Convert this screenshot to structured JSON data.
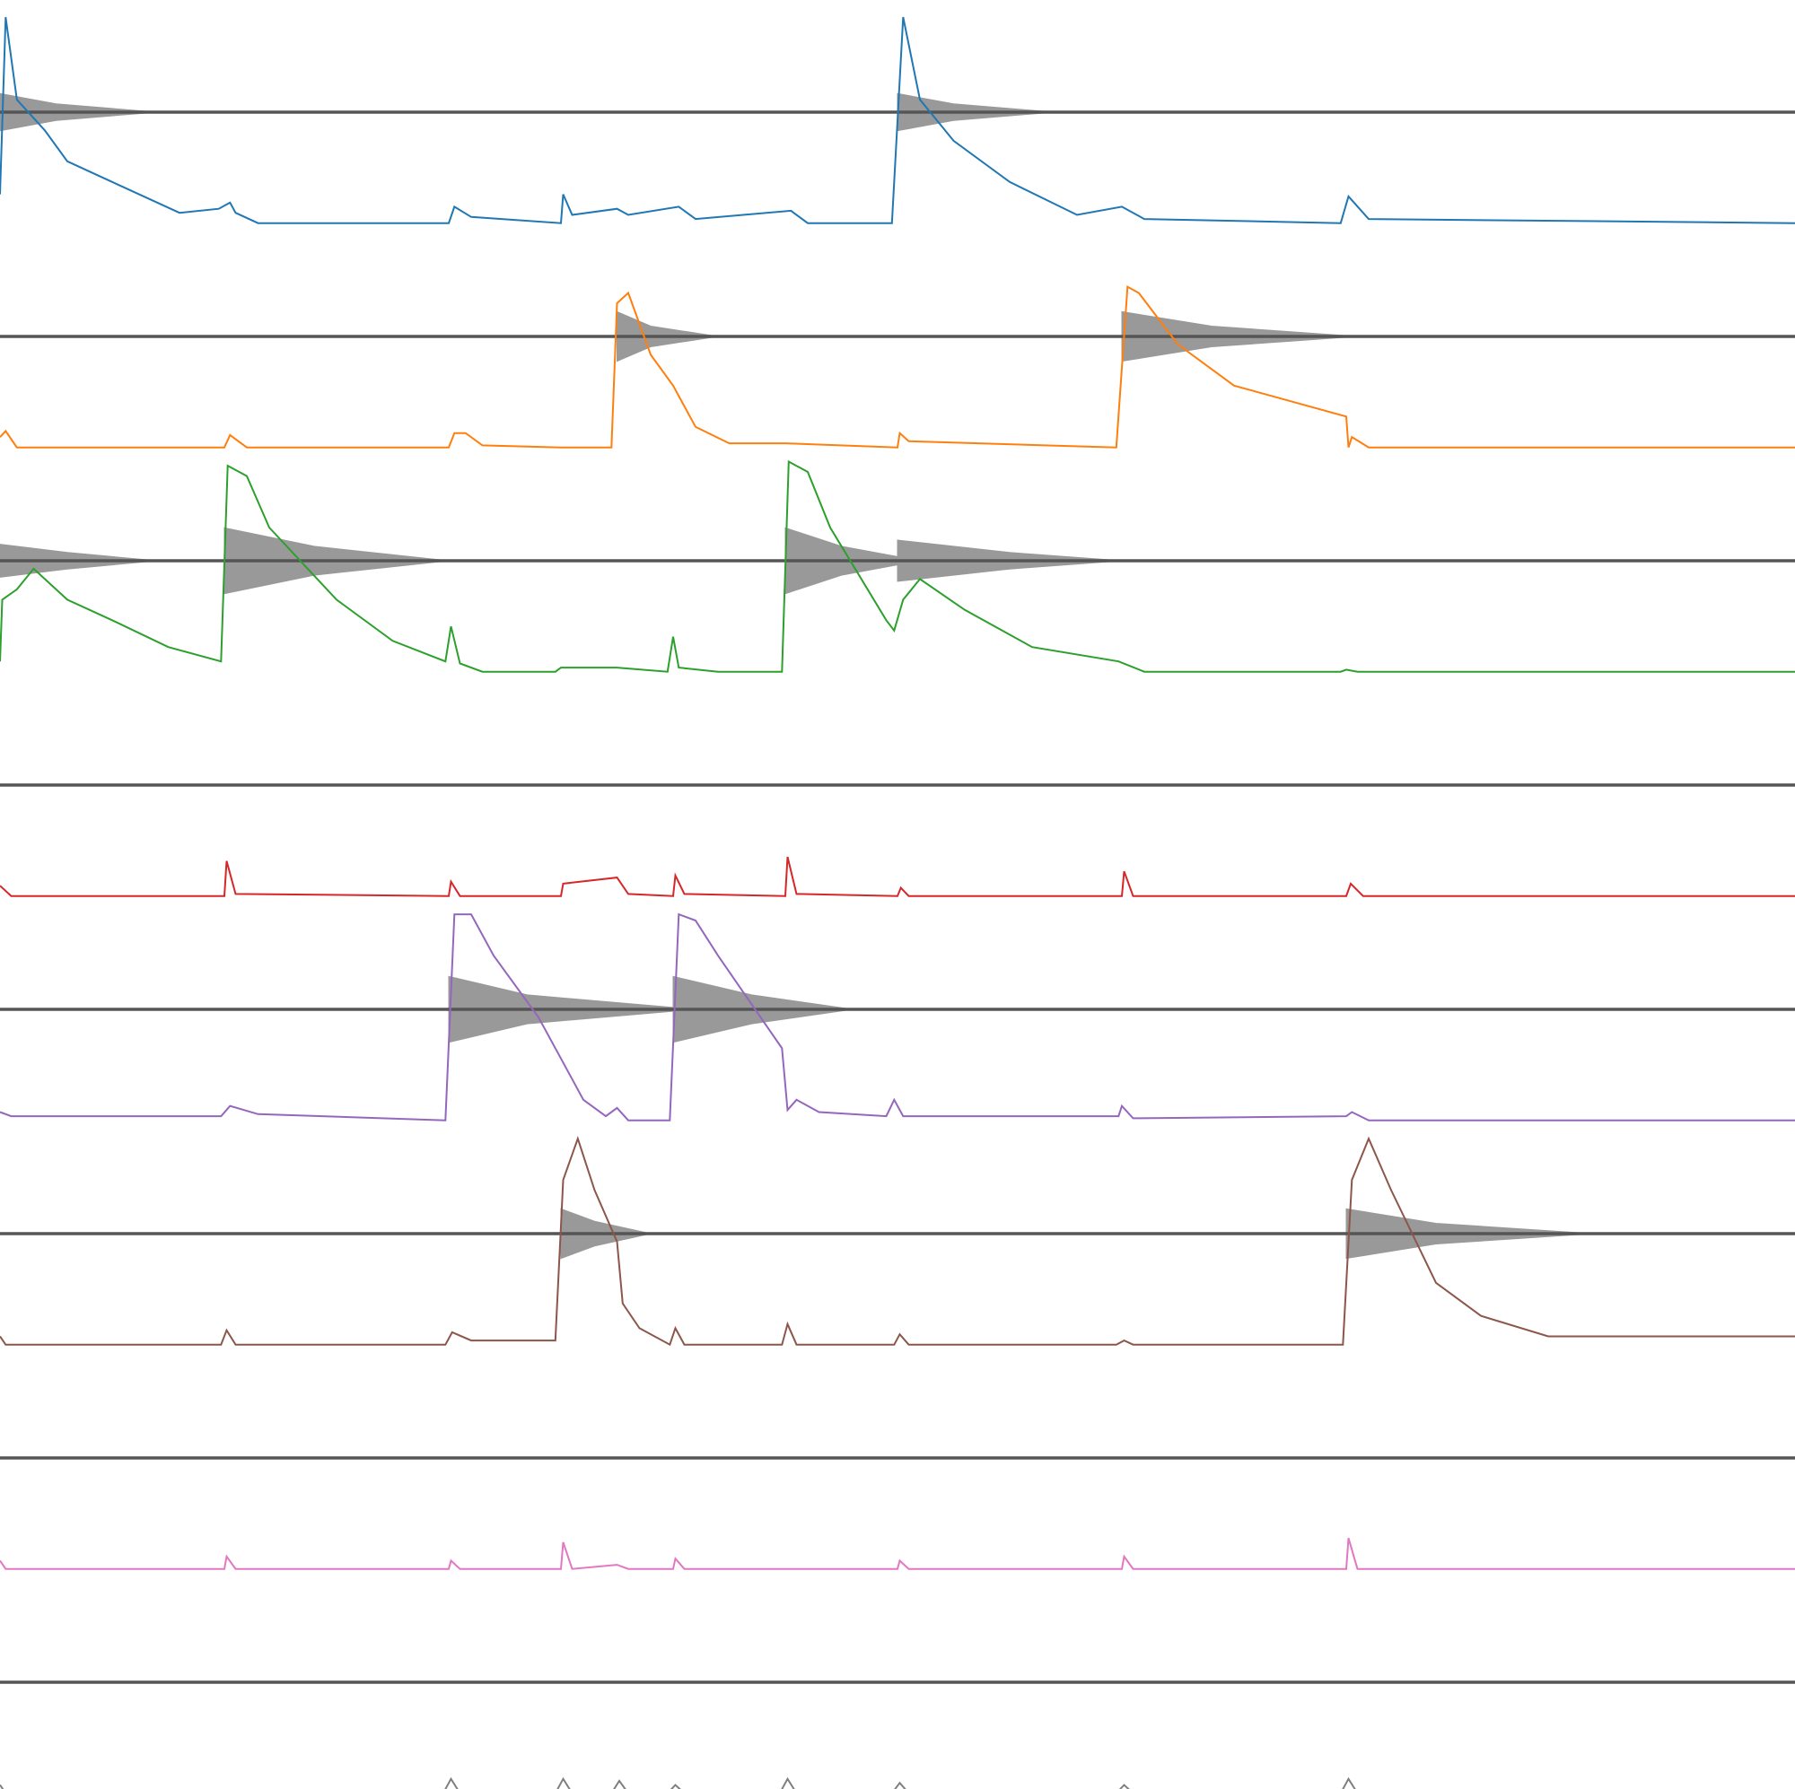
{
  "chart_data": {
    "type": "tracks",
    "xlim": [
      0,
      16
    ],
    "ylim": [
      0,
      1
    ],
    "wave_color": "#999999",
    "baseline_color": "#555555",
    "series": [
      {
        "color": "#1f77b4",
        "x": [
          0,
          0.05,
          0.15,
          0.4,
          0.6,
          1.0,
          1.6,
          1.95,
          2.05,
          2.1,
          2.3,
          4,
          4.05,
          4.2,
          5,
          5.02,
          5.1,
          5.5,
          5.6,
          6.05,
          6.2,
          7.05,
          7.2,
          7.95,
          8.05,
          8.2,
          8.5,
          9.0,
          9.6,
          10.0,
          10.2,
          11.95,
          12.02,
          12.2,
          16
        ],
        "values": [
          0.14,
          1.0,
          0.6,
          0.45,
          0.3,
          0.2,
          0.05,
          0.07,
          0.1,
          0.05,
          0,
          0,
          0.08,
          0.03,
          0,
          0.14,
          0.04,
          0.07,
          0.04,
          0.08,
          0.02,
          0.06,
          0,
          0,
          1.0,
          0.6,
          0.4,
          0.2,
          0.04,
          0.08,
          0.02,
          0,
          0.13,
          0.02,
          0
        ],
        "wave_x": [
          0,
          0.5,
          1.4,
          null,
          8,
          8.5,
          9.4
        ],
        "wave": [
          0.09,
          0.04,
          0,
          null,
          0.09,
          0.04,
          0
        ]
      },
      {
        "color": "#ff7f0e",
        "x": [
          0,
          0.05,
          0.15,
          2,
          2.05,
          2.2,
          4,
          4.05,
          4.15,
          4.3,
          5,
          5.45,
          5.5,
          5.6,
          5.8,
          6.0,
          6.2,
          6.5,
          7,
          8,
          8.02,
          8.1,
          9.95,
          10.05,
          10.15,
          10.5,
          11,
          12,
          12.02,
          12.05,
          12.2,
          16
        ],
        "values": [
          0.05,
          0.08,
          0,
          0,
          0.06,
          0,
          0,
          0.07,
          0.07,
          0.01,
          0,
          0,
          0.7,
          0.75,
          0.45,
          0.3,
          0.1,
          0.02,
          0.02,
          0,
          0.07,
          0.03,
          0,
          0.78,
          0.75,
          0.5,
          0.3,
          0.15,
          0,
          0.05,
          0,
          0
        ],
        "wave_x": [
          5.5,
          5.8,
          6.4,
          null,
          10,
          10.8,
          12.1
        ],
        "wave": [
          0.12,
          0.05,
          0,
          null,
          0.12,
          0.05,
          0
        ]
      },
      {
        "color": "#2ca02c",
        "x": [
          0,
          0.02,
          0.15,
          0.3,
          0.6,
          1.0,
          1.5,
          1.97,
          2.03,
          2.2,
          2.4,
          3.0,
          3.5,
          3.97,
          4.02,
          4.1,
          4.3,
          4.95,
          5,
          5.5,
          5.95,
          6.0,
          6.05,
          6.4,
          6.97,
          7.03,
          7.2,
          7.4,
          7.9,
          7.97,
          8.05,
          8.2,
          8.6,
          9.2,
          9.97,
          10.2,
          11.95,
          12,
          12.1,
          16
        ],
        "values": [
          0.05,
          0.35,
          0.4,
          0.5,
          0.35,
          0.25,
          0.12,
          0.05,
          1.0,
          0.95,
          0.7,
          0.35,
          0.15,
          0.05,
          0.22,
          0.04,
          0,
          0,
          0.02,
          0.02,
          0,
          0.17,
          0.02,
          0,
          0,
          1.02,
          0.97,
          0.7,
          0.25,
          0.2,
          0.35,
          0.45,
          0.3,
          0.12,
          0.05,
          0,
          0,
          0.01,
          0,
          0
        ],
        "wave_x": [
          0,
          0.6,
          1.4,
          null,
          2,
          2.8,
          4,
          null,
          7,
          7.5,
          8,
          null,
          8,
          9,
          10
        ],
        "wave": [
          0.08,
          0.04,
          0,
          null,
          0.16,
          0.07,
          0,
          null,
          0.16,
          0.07,
          0.02,
          null,
          0.1,
          0.04,
          0
        ]
      },
      {
        "color": "#d62728",
        "x": [
          0,
          0.1,
          2,
          2.02,
          2.1,
          4,
          4.02,
          4.1,
          5,
          5.02,
          5.5,
          5.6,
          6,
          6.02,
          6.1,
          7,
          7.02,
          7.1,
          8,
          8.03,
          8.1,
          10,
          10.02,
          10.1,
          12,
          12.04,
          12.15,
          16
        ],
        "values": [
          0.05,
          0,
          0,
          0.17,
          0.01,
          0,
          0.07,
          0,
          0,
          0.06,
          0.09,
          0.01,
          0,
          0.1,
          0.01,
          0,
          0.19,
          0.01,
          0,
          0.04,
          0,
          0,
          0.12,
          0,
          0,
          0.06,
          0,
          0
        ]
      },
      {
        "color": "#9467bd",
        "x": [
          0,
          0.1,
          1.97,
          2.05,
          2.3,
          3.97,
          4.05,
          4.2,
          4.4,
          4.8,
          5.0,
          5.2,
          5.4,
          5.5,
          5.6,
          5.97,
          6.05,
          6.2,
          6.4,
          6.97,
          7.02,
          7.1,
          7.3,
          7.9,
          7.97,
          8.05,
          9.97,
          10,
          10.1,
          12,
          12.05,
          12.2,
          16
        ],
        "values": [
          0.04,
          0.02,
          0.02,
          0.07,
          0.03,
          0,
          1.0,
          1.0,
          0.8,
          0.5,
          0.3,
          0.1,
          0.02,
          0.06,
          0,
          0,
          1.0,
          0.97,
          0.8,
          0.35,
          0.05,
          0.1,
          0.04,
          0.02,
          0.1,
          0.02,
          0.02,
          0.07,
          0.01,
          0.02,
          0.04,
          0,
          0
        ],
        "wave_x": [
          4,
          4.7,
          6.2,
          null,
          6,
          6.7,
          7.6
        ],
        "wave": [
          0.16,
          0.07,
          0,
          null,
          0.16,
          0.07,
          0
        ]
      },
      {
        "color": "#8c564b",
        "x": [
          0,
          0.05,
          1.97,
          2.02,
          2.1,
          3.97,
          4.03,
          4.2,
          4.95,
          5.02,
          5.15,
          5.3,
          5.5,
          5.55,
          5.7,
          5.97,
          6.02,
          6.1,
          6.97,
          7.02,
          7.1,
          7.97,
          8.02,
          8.1,
          9.95,
          10.02,
          10.1,
          11.97,
          12.05,
          12.2,
          12.4,
          12.8,
          13.2,
          13.8,
          14.5,
          16
        ],
        "values": [
          0.04,
          0,
          0,
          0.07,
          0,
          0,
          0.06,
          0.02,
          0.02,
          0.8,
          1.0,
          0.75,
          0.5,
          0.2,
          0.08,
          0,
          0.08,
          0,
          0,
          0.1,
          0,
          0,
          0.05,
          0,
          0,
          0.02,
          0,
          0,
          0.8,
          1.0,
          0.75,
          0.3,
          0.14,
          0.04,
          0.04,
          0.04
        ],
        "wave_x": [
          5,
          5.3,
          5.8,
          null,
          12,
          12.8,
          14.2
        ],
        "wave": [
          0.12,
          0.06,
          0,
          null,
          0.12,
          0.05,
          0
        ]
      },
      {
        "color": "#e377c2",
        "x": [
          0,
          0.05,
          2,
          2.02,
          2.1,
          4,
          4.02,
          4.1,
          5,
          5.02,
          5.1,
          5.5,
          5.6,
          6,
          6.02,
          6.1,
          8,
          8.02,
          8.1,
          10,
          10.02,
          10.1,
          12,
          12.02,
          12.1,
          16
        ],
        "values": [
          0.04,
          0,
          0,
          0.06,
          0,
          0,
          0.04,
          0,
          0,
          0.13,
          0,
          0.02,
          0,
          0,
          0.05,
          0,
          0,
          0.04,
          0,
          0,
          0.06,
          0,
          0,
          0.15,
          0,
          0
        ]
      },
      {
        "color": "#7f7f7f",
        "x": [
          0,
          0.05,
          3.95,
          4.02,
          4.1,
          4.95,
          5.02,
          5.1,
          5.45,
          5.52,
          5.6,
          5.95,
          6.02,
          6.1,
          6.95,
          7.02,
          7.1,
          7.95,
          8.02,
          8.1,
          9.95,
          10.02,
          10.1,
          11.95,
          12.02,
          12.1,
          16
        ],
        "values": [
          0.04,
          0,
          0,
          0.07,
          0,
          0,
          0.07,
          0,
          0,
          0.06,
          0,
          0,
          0.04,
          0,
          0,
          0.07,
          0,
          0,
          0.05,
          0,
          0,
          0.04,
          0,
          0,
          0.07,
          0,
          0
        ]
      }
    ]
  }
}
